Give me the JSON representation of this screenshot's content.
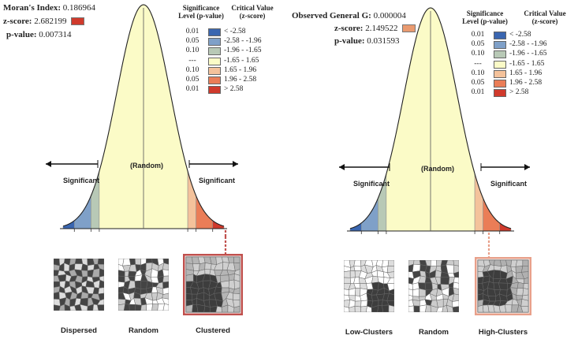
{
  "left": {
    "stat1_label": "Moran's Index:",
    "stat1_value": "0.186964",
    "zscore_label": "z-score:",
    "zscore_value": "2.682199",
    "pvalue_label": "p-value:",
    "pvalue_value": "0.007314",
    "legend_sig_header": "Significance Level (p-value)",
    "legend_crit_header": "Critical Value (z-score)",
    "legend_rows": [
      {
        "sig": "0.01",
        "crit": "< -2.58",
        "color": "#3a66b0"
      },
      {
        "sig": "0.05",
        "crit": "-2.58 - -1.96",
        "color": "#7fa0c8"
      },
      {
        "sig": "0.10",
        "crit": "-1.96 - -1.65",
        "color": "#b8c9b6"
      },
      {
        "sig": "---",
        "crit": "-1.65 - 1.65",
        "color": "#fbfbc7"
      },
      {
        "sig": "0.10",
        "crit": "1.65 - 1.96",
        "color": "#f4c29b"
      },
      {
        "sig": "0.05",
        "crit": "1.96 - 2.58",
        "color": "#ea7d57"
      },
      {
        "sig": "0.01",
        "crit": "> 2.58",
        "color": "#d03a2c"
      }
    ],
    "random_label": "(Random)",
    "significant_left": "Significant",
    "significant_right": "Significant",
    "patterns": [
      "Dispersed",
      "Random",
      "Clustered"
    ],
    "highlight_color": "#c0504d"
  },
  "right": {
    "stat1_label": "Observed General G:",
    "stat1_value": "0.000004",
    "zscore_label": "z-score:",
    "zscore_value": "2.149522",
    "pvalue_label": "p-value:",
    "pvalue_value": "0.031593",
    "legend_sig_header": "Significance Level (p-value)",
    "legend_crit_header": "Critical Value (z-score)",
    "legend_rows": [
      {
        "sig": "0.01",
        "crit": "< -2.58",
        "color": "#3a66b0"
      },
      {
        "sig": "0.05",
        "crit": "-2.58 - -1.96",
        "color": "#7fa0c8"
      },
      {
        "sig": "0.10",
        "crit": "-1.96 - -1.65",
        "color": "#b8c9b6"
      },
      {
        "sig": "---",
        "crit": "-1.65 - 1.65",
        "color": "#fbfbc7"
      },
      {
        "sig": "0.10",
        "crit": "1.65 - 1.96",
        "color": "#f4c29b"
      },
      {
        "sig": "0.05",
        "crit": "1.96 - 2.58",
        "color": "#ea7d57"
      },
      {
        "sig": "0.01",
        "crit": "> 2.58",
        "color": "#d03a2c"
      }
    ],
    "random_label": "(Random)",
    "significant_left": "Significant",
    "significant_right": "Significant",
    "patterns": [
      "Low-Clusters",
      "Random",
      "High-Clusters"
    ],
    "highlight_color": "#e8a08a"
  }
}
